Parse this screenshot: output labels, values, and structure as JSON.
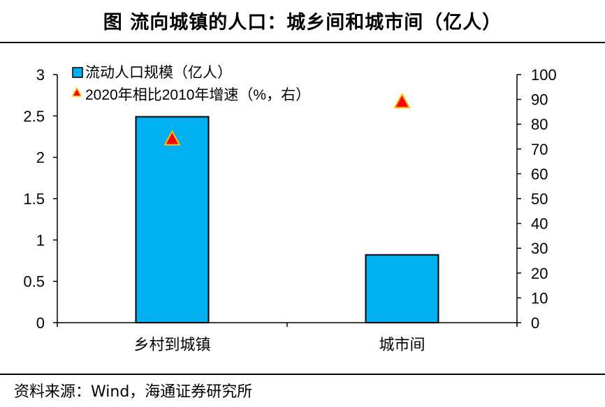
{
  "title": "图  流向城镇的人口：城乡间和城市间（亿人）",
  "source": "资料来源：Wind，海通证券研究所",
  "chart_data": {
    "type": "bar",
    "categories": [
      "乡村到城镇",
      "城市间"
    ],
    "series": [
      {
        "name": "流动人口规模（亿人）",
        "type": "bar",
        "axis": "left",
        "values": [
          2.49,
          0.82
        ],
        "color": "#00b0f0"
      },
      {
        "name": "2020年相比2010年增速（%，右）",
        "type": "scatter",
        "marker": "triangle",
        "axis": "right",
        "values": [
          74,
          89
        ],
        "color": "#ff0000",
        "edge_color": "#ffc000"
      }
    ],
    "y_left": {
      "lim": [
        0,
        3
      ],
      "ticks": [
        "0",
        "0.5",
        "1",
        "1.5",
        "2",
        "2.5",
        "3"
      ]
    },
    "y_right": {
      "lim": [
        0,
        100
      ],
      "ticks": [
        "0",
        "10",
        "20",
        "30",
        "40",
        "50",
        "60",
        "70",
        "80",
        "90",
        "100"
      ]
    },
    "legend_position": "top-left",
    "grid": false
  }
}
